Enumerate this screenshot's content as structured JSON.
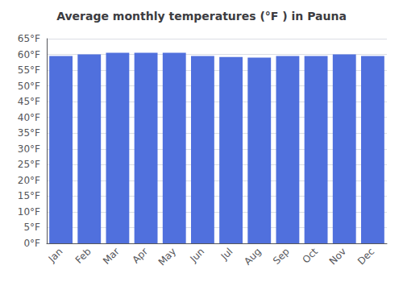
{
  "chart_data": {
    "type": "bar",
    "title": "Average monthly temperatures (°F ) in Pauna",
    "categories": [
      "Jan",
      "Feb",
      "Mar",
      "Apr",
      "May",
      "Jun",
      "Jul",
      "Aug",
      "Sep",
      "Oct",
      "Nov",
      "Dec"
    ],
    "values": [
      59.5,
      60.0,
      60.5,
      60.5,
      60.5,
      59.5,
      59.2,
      59.0,
      59.5,
      59.5,
      60.0,
      59.5
    ],
    "ylim": [
      0,
      65
    ],
    "yticks": [
      {
        "value": 0,
        "label": "0°F"
      },
      {
        "value": 5,
        "label": "5°F"
      },
      {
        "value": 10,
        "label": "10°F"
      },
      {
        "value": 15,
        "label": "15°F"
      },
      {
        "value": 20,
        "label": "20°F"
      },
      {
        "value": 25,
        "label": "25°F"
      },
      {
        "value": 30,
        "label": "30°F"
      },
      {
        "value": 35,
        "label": "35°F"
      },
      {
        "value": 40,
        "label": "40°F"
      },
      {
        "value": 45,
        "label": "45°F"
      },
      {
        "value": 50,
        "label": "50°F"
      },
      {
        "value": 55,
        "label": "55°F"
      },
      {
        "value": 60,
        "label": "60°F"
      },
      {
        "value": 65,
        "label": "65°F"
      }
    ],
    "grid": true
  }
}
